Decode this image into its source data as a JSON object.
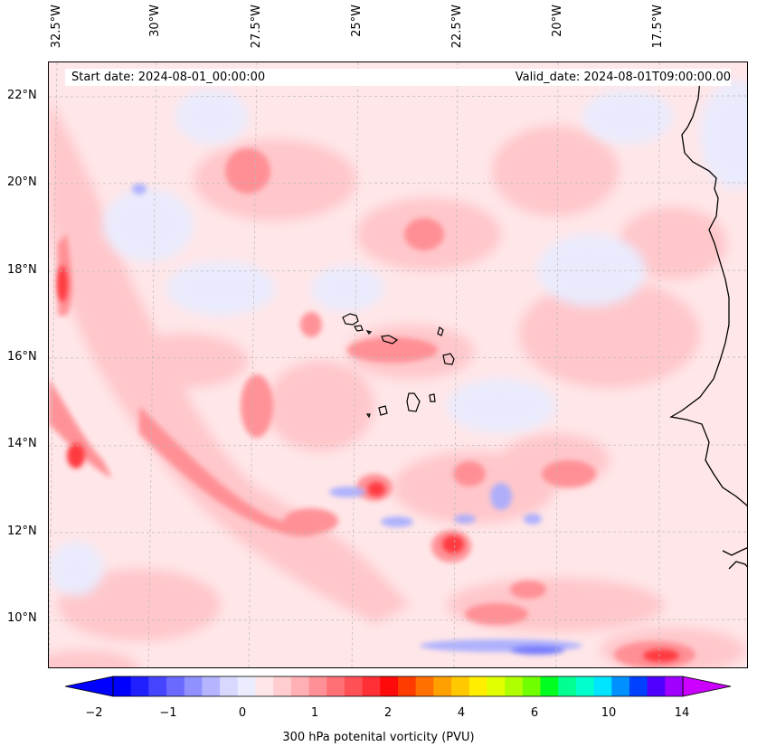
{
  "map": {
    "start_date": "Start date: 2024-08-01_00:00:00",
    "valid_date": "Valid_date: 2024-08-01T09:00:00.00",
    "lon_labels": [
      "32.5°W",
      "30°W",
      "27.5°W",
      "25°W",
      "22.5°W",
      "20°W",
      "17.5°W"
    ],
    "lat_labels": [
      "22°N",
      "20°N",
      "18°N",
      "16°N",
      "14°N",
      "12°N",
      "10°N"
    ],
    "gridlines": "dashed gray",
    "coastlines": "black",
    "background_color": "#ffe6e8"
  },
  "colorbar": {
    "label": "300 hPa potenital vorticity (PVU)",
    "tick_labels": [
      "−2",
      "−1",
      "0",
      "1",
      "2",
      "4",
      "6",
      "10",
      "14"
    ],
    "extend": "both",
    "colors": [
      "#0000ff",
      "#2020ff",
      "#4545ff",
      "#6a6aff",
      "#9090ff",
      "#b5b5ff",
      "#d8d8ff",
      "#ececff",
      "#ffe6e8",
      "#ffcdd0",
      "#ffb0b4",
      "#ff9095",
      "#ff7075",
      "#ff5055",
      "#ff3035",
      "#ff0a0a",
      "#ff3c00",
      "#ff7000",
      "#ffa000",
      "#ffc800",
      "#ffee00",
      "#e0ff00",
      "#b0ff00",
      "#70ff00",
      "#00ff20",
      "#00ff90",
      "#00ffcc",
      "#00e5ff",
      "#0090ff",
      "#0040ff",
      "#5000ff",
      "#a000ff"
    ],
    "min_color": "#0000ff",
    "max_color": "#cc00ff"
  }
}
